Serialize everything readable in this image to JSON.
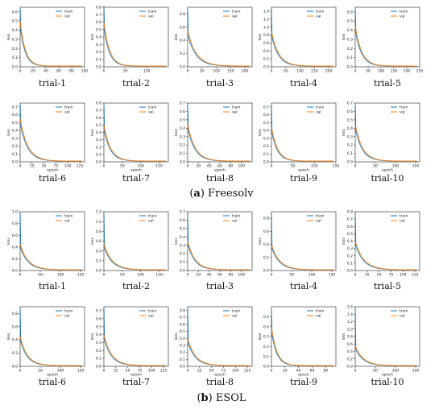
{
  "figure": {
    "series_names": [
      "train",
      "val"
    ],
    "series_colors": {
      "train": "#1f77b4",
      "val": "#ff7f0e"
    },
    "xlabel": "epoch",
    "ylabel": "loss",
    "captions": [
      {
        "letter": "a",
        "text": " Freesolv"
      },
      {
        "letter": "b",
        "text": " ESOL"
      }
    ]
  },
  "chart_data": [
    {
      "group": "Freesolv",
      "title": "trial-1",
      "type": "line",
      "xlim": [
        0,
        100
      ],
      "ylim": [
        0,
        0.65
      ],
      "xticks": [
        0,
        20,
        40,
        60,
        80,
        100
      ],
      "yticks": [
        0.0,
        0.1,
        0.2,
        0.3,
        0.4,
        0.5,
        0.6
      ],
      "train_start": 0.65,
      "val_start": 0.5,
      "tau": 8,
      "series": [
        {
          "name": "train"
        },
        {
          "name": "val"
        }
      ],
      "xlabel": "",
      "ylabel": "loss",
      "legend": "top-right",
      "grid": false
    },
    {
      "group": "Freesolv",
      "title": "trial-2",
      "type": "line",
      "xlim": [
        0,
        150
      ],
      "ylim": [
        0,
        0.8
      ],
      "xticks": [
        0,
        50,
        100
      ],
      "yticks": [
        0.0,
        0.1,
        0.2,
        0.3,
        0.4,
        0.5,
        0.6,
        0.7,
        0.8
      ],
      "train_start": 0.82,
      "val_start": 0.6,
      "tau": 13,
      "series": [
        {
          "name": "train"
        },
        {
          "name": "val"
        }
      ],
      "xlabel": "",
      "ylabel": "loss",
      "legend": "top-right",
      "grid": false
    },
    {
      "group": "Freesolv",
      "title": "trial-3",
      "type": "line",
      "xlim": [
        0,
        225
      ],
      "ylim": [
        0,
        0.9
      ],
      "xticks": [
        0,
        50,
        100,
        150,
        200
      ],
      "yticks": [
        0.0,
        0.2,
        0.4,
        0.6,
        0.8
      ],
      "train_start": 0.9,
      "val_start": 0.55,
      "tau": 30,
      "series": [
        {
          "name": "train"
        },
        {
          "name": "val"
        }
      ],
      "xlabel": "",
      "ylabel": "loss",
      "legend": "top-right",
      "grid": false
    },
    {
      "group": "Freesolv",
      "title": "trial-4",
      "type": "line",
      "xlim": [
        0,
        225
      ],
      "ylim": [
        0,
        1.5
      ],
      "xticks": [
        0,
        50,
        100,
        150,
        200
      ],
      "yticks": [
        0.0,
        0.2,
        0.4,
        0.6,
        0.8,
        1.0,
        1.2,
        1.4
      ],
      "train_start": 1.5,
      "val_start": 0.9,
      "tau": 25,
      "series": [
        {
          "name": "train"
        },
        {
          "name": "val"
        }
      ],
      "xlabel": "",
      "ylabel": "loss",
      "legend": "top-right",
      "grid": false
    },
    {
      "group": "Freesolv",
      "title": "trial-5",
      "type": "line",
      "xlim": [
        0,
        250
      ],
      "ylim": [
        0,
        0.65
      ],
      "xticks": [
        0,
        50,
        100,
        150,
        200,
        250
      ],
      "yticks": [
        0.0,
        0.1,
        0.2,
        0.3,
        0.4,
        0.5,
        0.6
      ],
      "train_start": 0.65,
      "val_start": 0.45,
      "tau": 25,
      "series": [
        {
          "name": "train"
        },
        {
          "name": "val"
        }
      ],
      "xlabel": "",
      "ylabel": "loss",
      "legend": "top-right",
      "grid": false
    },
    {
      "group": "Freesolv",
      "title": "trial-6",
      "type": "line",
      "xlim": [
        0,
        135
      ],
      "ylim": [
        0,
        0.75
      ],
      "xticks": [
        0,
        25,
        50,
        75,
        100,
        125
      ],
      "yticks": [
        0.0,
        0.1,
        0.2,
        0.3,
        0.4,
        0.5,
        0.6,
        0.7
      ],
      "train_start": 0.75,
      "val_start": 0.55,
      "tau": 16,
      "series": [
        {
          "name": "train"
        },
        {
          "name": "val"
        }
      ],
      "xlabel": "epoch",
      "ylabel": "loss",
      "legend": "top-right",
      "grid": false
    },
    {
      "group": "Freesolv",
      "title": "trial-7",
      "type": "line",
      "xlim": [
        0,
        175
      ],
      "ylim": [
        0,
        0.8
      ],
      "xticks": [
        0,
        50,
        100,
        150
      ],
      "yticks": [
        0.0,
        0.1,
        0.2,
        0.3,
        0.4,
        0.5,
        0.6,
        0.7,
        0.8
      ],
      "train_start": 0.8,
      "val_start": 0.5,
      "tau": 18,
      "series": [
        {
          "name": "train"
        },
        {
          "name": "val"
        }
      ],
      "xlabel": "epoch",
      "ylabel": "loss",
      "legend": "top-right",
      "grid": false
    },
    {
      "group": "Freesolv",
      "title": "trial-8",
      "type": "line",
      "xlim": [
        0,
        120
      ],
      "ylim": [
        0,
        0.7
      ],
      "xticks": [
        0,
        20,
        40,
        60,
        80,
        100
      ],
      "yticks": [
        0.0,
        0.1,
        0.2,
        0.3,
        0.4,
        0.5,
        0.6,
        0.7
      ],
      "train_start": 0.7,
      "val_start": 0.45,
      "tau": 14,
      "series": [
        {
          "name": "train"
        },
        {
          "name": "val"
        }
      ],
      "xlabel": "epoch",
      "ylabel": "loss",
      "legend": "top-right",
      "grid": false
    },
    {
      "group": "Freesolv",
      "title": "trial-9",
      "type": "line",
      "xlim": [
        0,
        150
      ],
      "ylim": [
        0,
        0.75
      ],
      "xticks": [
        0,
        50,
        100,
        150
      ],
      "yticks": [
        0.0,
        0.1,
        0.2,
        0.3,
        0.4,
        0.5,
        0.6,
        0.7
      ],
      "train_start": 0.75,
      "val_start": 0.45,
      "tau": 14,
      "series": [
        {
          "name": "train"
        },
        {
          "name": "val"
        }
      ],
      "xlabel": "epoch",
      "ylabel": "loss",
      "legend": "top-right",
      "grid": false
    },
    {
      "group": "Freesolv",
      "title": "trial-10",
      "type": "line",
      "xlim": [
        0,
        160
      ],
      "ylim": [
        0,
        0.7
      ],
      "xticks": [
        0,
        50,
        100,
        150
      ],
      "yticks": [
        0.0,
        0.1,
        0.2,
        0.3,
        0.4,
        0.5,
        0.6,
        0.7
      ],
      "train_start": 0.7,
      "val_start": 0.45,
      "tau": 18,
      "series": [
        {
          "name": "train"
        },
        {
          "name": "val"
        }
      ],
      "xlabel": "epoch",
      "ylabel": "loss",
      "legend": "top-right",
      "grid": false
    },
    {
      "group": "ESOL",
      "title": "trial-1",
      "type": "line",
      "xlim": [
        0,
        160
      ],
      "ylim": [
        0,
        1.0
      ],
      "xticks": [
        0,
        50,
        100,
        150
      ],
      "yticks": [
        0.0,
        0.2,
        0.4,
        0.6,
        0.8,
        1.0
      ],
      "train_start": 1.0,
      "val_start": 0.45,
      "tau": 20,
      "series": [
        {
          "name": "train"
        },
        {
          "name": "val"
        }
      ],
      "xlabel": "",
      "ylabel": "loss",
      "legend": "top-right",
      "grid": false
    },
    {
      "group": "ESOL",
      "title": "trial-2",
      "type": "line",
      "xlim": [
        0,
        175
      ],
      "ylim": [
        0,
        1.2
      ],
      "xticks": [
        0,
        50,
        100,
        150
      ],
      "yticks": [
        0.0,
        0.2,
        0.4,
        0.6,
        0.8,
        1.0,
        1.2
      ],
      "train_start": 1.2,
      "val_start": 0.55,
      "tau": 22,
      "series": [
        {
          "name": "train"
        },
        {
          "name": "val"
        }
      ],
      "xlabel": "",
      "ylabel": "loss",
      "legend": "top-right",
      "grid": false
    },
    {
      "group": "ESOL",
      "title": "trial-3",
      "type": "line",
      "xlim": [
        0,
        120
      ],
      "ylim": [
        0,
        0.7
      ],
      "xticks": [
        0,
        20,
        40,
        60,
        80,
        100
      ],
      "yticks": [
        0.0,
        0.1,
        0.2,
        0.3,
        0.4,
        0.5,
        0.6,
        0.7
      ],
      "train_start": 0.7,
      "val_start": 0.35,
      "tau": 14,
      "series": [
        {
          "name": "train"
        },
        {
          "name": "val"
        }
      ],
      "xlabel": "",
      "ylabel": "loss",
      "legend": "top-right",
      "grid": false
    },
    {
      "group": "ESOL",
      "title": "trial-4",
      "type": "line",
      "xlim": [
        0,
        160
      ],
      "ylim": [
        0,
        0.9
      ],
      "xticks": [
        0,
        50,
        100,
        150
      ],
      "yticks": [
        0.0,
        0.2,
        0.4,
        0.6,
        0.8
      ],
      "train_start": 0.9,
      "val_start": 0.4,
      "tau": 20,
      "series": [
        {
          "name": "train"
        },
        {
          "name": "val"
        }
      ],
      "xlabel": "",
      "ylabel": "loss",
      "legend": "top-right",
      "grid": false
    },
    {
      "group": "ESOL",
      "title": "trial-5",
      "type": "line",
      "xlim": [
        0,
        135
      ],
      "ylim": [
        0,
        0.8
      ],
      "xticks": [
        0,
        25,
        50,
        75,
        100,
        125
      ],
      "yticks": [
        0.0,
        0.1,
        0.2,
        0.3,
        0.4,
        0.5,
        0.6,
        0.7,
        0.8
      ],
      "train_start": 0.8,
      "val_start": 0.4,
      "tau": 18,
      "series": [
        {
          "name": "train"
        },
        {
          "name": "val"
        }
      ],
      "xlabel": "",
      "ylabel": "loss",
      "legend": "top-right",
      "grid": false
    },
    {
      "group": "ESOL",
      "title": "trial-6",
      "type": "line",
      "xlim": [
        0,
        160
      ],
      "ylim": [
        0,
        0.9
      ],
      "xticks": [
        0,
        50,
        100,
        150
      ],
      "yticks": [
        0.0,
        0.2,
        0.4,
        0.6,
        0.8
      ],
      "train_start": 0.9,
      "val_start": 0.45,
      "tau": 18,
      "series": [
        {
          "name": "train"
        },
        {
          "name": "val"
        }
      ],
      "xlabel": "epoch",
      "ylabel": "loss",
      "legend": "top-right",
      "grid": false
    },
    {
      "group": "ESOL",
      "title": "trial-7",
      "type": "line",
      "xlim": [
        0,
        135
      ],
      "ylim": [
        0,
        0.75
      ],
      "xticks": [
        0,
        25,
        50,
        75,
        100,
        125
      ],
      "yticks": [
        0.0,
        0.1,
        0.2,
        0.3,
        0.4,
        0.5,
        0.6,
        0.7
      ],
      "train_start": 0.75,
      "val_start": 0.4,
      "tau": 16,
      "series": [
        {
          "name": "train"
        },
        {
          "name": "val"
        }
      ],
      "xlabel": "epoch",
      "ylabel": "loss",
      "legend": "top-right",
      "grid": false
    },
    {
      "group": "ESOL",
      "title": "trial-8",
      "type": "line",
      "xlim": [
        0,
        135
      ],
      "ylim": [
        0,
        0.85
      ],
      "xticks": [
        0,
        25,
        50,
        75,
        100,
        125
      ],
      "yticks": [
        0.0,
        0.1,
        0.2,
        0.3,
        0.4,
        0.5,
        0.6,
        0.7,
        0.8
      ],
      "train_start": 0.85,
      "val_start": 0.4,
      "tau": 16,
      "series": [
        {
          "name": "train"
        },
        {
          "name": "val"
        }
      ],
      "xlabel": "epoch",
      "ylabel": "loss",
      "legend": "top-right",
      "grid": false
    },
    {
      "group": "ESOL",
      "title": "trial-9",
      "type": "line",
      "xlim": [
        0,
        95
      ],
      "ylim": [
        0,
        0.6
      ],
      "xticks": [
        0,
        20,
        40,
        60,
        80
      ],
      "yticks": [
        0.0,
        0.1,
        0.2,
        0.3,
        0.4,
        0.5
      ],
      "train_start": 0.58,
      "val_start": 0.4,
      "tau": 8,
      "series": [
        {
          "name": "train"
        },
        {
          "name": "val"
        }
      ],
      "xlabel": "epoch",
      "ylabel": "loss",
      "legend": "top-right",
      "grid": false
    },
    {
      "group": "ESOL",
      "title": "trial-10",
      "type": "line",
      "xlim": [
        0,
        160
      ],
      "ylim": [
        0,
        1.6
      ],
      "xticks": [
        0,
        50,
        100,
        150
      ],
      "yticks": [
        0.0,
        0.2,
        0.4,
        0.6,
        0.8,
        1.0,
        1.2,
        1.4,
        1.6
      ],
      "train_start": 1.6,
      "val_start": 0.55,
      "tau": 20,
      "series": [
        {
          "name": "train"
        },
        {
          "name": "val"
        }
      ],
      "xlabel": "epoch",
      "ylabel": "loss",
      "legend": "top-right",
      "grid": false
    }
  ]
}
